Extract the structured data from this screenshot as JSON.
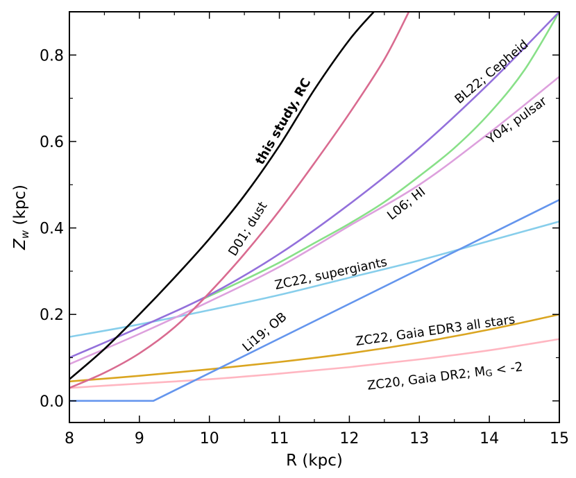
{
  "chart_data": {
    "type": "line",
    "xlabel": "R (kpc)",
    "ylabel": "Z",
    "ylabel_sub": "w",
    "ylabel_unit": " (kpc)",
    "xlim": [
      8,
      15
    ],
    "ylim": [
      -0.05,
      0.9
    ],
    "x_ticks": [
      8,
      9,
      10,
      11,
      12,
      13,
      14,
      15
    ],
    "y_ticks": [
      0.0,
      0.2,
      0.4,
      0.6,
      0.8
    ],
    "x_tick_labels": [
      "8",
      "9",
      "10",
      "11",
      "12",
      "13",
      "14",
      "15"
    ],
    "y_tick_labels": [
      "0.0",
      "0.2",
      "0.4",
      "0.6",
      "0.8"
    ],
    "series": [
      {
        "key": "rc",
        "name": "this study, RC",
        "color": "#000000",
        "bold": true,
        "x": [
          8.0,
          8.5,
          9.0,
          9.5,
          10.0,
          10.5,
          11.0,
          11.5,
          12.0,
          12.35
        ],
        "y": [
          0.05,
          0.12,
          0.2,
          0.285,
          0.375,
          0.475,
          0.59,
          0.72,
          0.835,
          0.9
        ]
      },
      {
        "key": "d01",
        "name": "D01; dust",
        "color": "#d96b90",
        "x": [
          8.0,
          8.5,
          9.0,
          9.5,
          10.0,
          10.5,
          11.0,
          11.5,
          12.0,
          12.5,
          12.85
        ],
        "y": [
          0.03,
          0.065,
          0.11,
          0.17,
          0.25,
          0.34,
          0.44,
          0.55,
          0.665,
          0.79,
          0.9
        ]
      },
      {
        "key": "bl22",
        "name": "BL22; Cepheid",
        "color": "#9370db",
        "x": [
          8.0,
          9.0,
          10.0,
          11.0,
          12.0,
          13.0,
          14.0,
          15.0
        ],
        "y": [
          0.1,
          0.17,
          0.245,
          0.34,
          0.455,
          0.585,
          0.735,
          0.9
        ]
      },
      {
        "key": "l06",
        "name": "L06; HI",
        "color": "#88e088",
        "x": [
          9.9,
          10.5,
          11.0,
          11.5,
          12.0,
          12.5,
          13.0,
          13.5,
          14.0,
          14.5,
          15.0
        ],
        "y": [
          0.235,
          0.28,
          0.32,
          0.365,
          0.41,
          0.46,
          0.52,
          0.585,
          0.665,
          0.765,
          0.9
        ]
      },
      {
        "key": "y04",
        "name": "Y04; pulsar",
        "color": "#dda0dd",
        "x": [
          8.0,
          9.0,
          10.0,
          11.0,
          12.0,
          13.0,
          14.0,
          15.0
        ],
        "y": [
          0.085,
          0.155,
          0.23,
          0.31,
          0.405,
          0.5,
          0.62,
          0.75
        ]
      },
      {
        "key": "li19",
        "name": "Li19; OB",
        "color": "#6495ed",
        "x": [
          8.0,
          9.2,
          15.0
        ],
        "y": [
          0.0,
          0.0,
          0.465
        ]
      },
      {
        "key": "zc22s",
        "name": "ZC22, supergiants",
        "color": "#87ceeb",
        "x": [
          8.0,
          9.0,
          10.0,
          11.0,
          12.0,
          13.0,
          14.0,
          15.0
        ],
        "y": [
          0.148,
          0.177,
          0.21,
          0.245,
          0.285,
          0.325,
          0.37,
          0.415
        ]
      },
      {
        "key": "zc22g",
        "name": "ZC22, Gaia EDR3 all stars",
        "color": "#daa520",
        "x": [
          8.0,
          9.0,
          10.0,
          11.0,
          12.0,
          13.0,
          14.0,
          15.0
        ],
        "y": [
          0.045,
          0.058,
          0.073,
          0.09,
          0.11,
          0.135,
          0.165,
          0.2
        ]
      },
      {
        "key": "zc20",
        "name": "ZC20, Gaia DR2; M",
        "name_sub": "G",
        "name_suffix": " < -2",
        "color": "#ffb6c1",
        "x": [
          8.0,
          9.0,
          10.0,
          11.0,
          12.0,
          13.0,
          14.0,
          15.0
        ],
        "y": [
          0.03,
          0.04,
          0.05,
          0.063,
          0.078,
          0.096,
          0.117,
          0.143
        ]
      }
    ]
  }
}
